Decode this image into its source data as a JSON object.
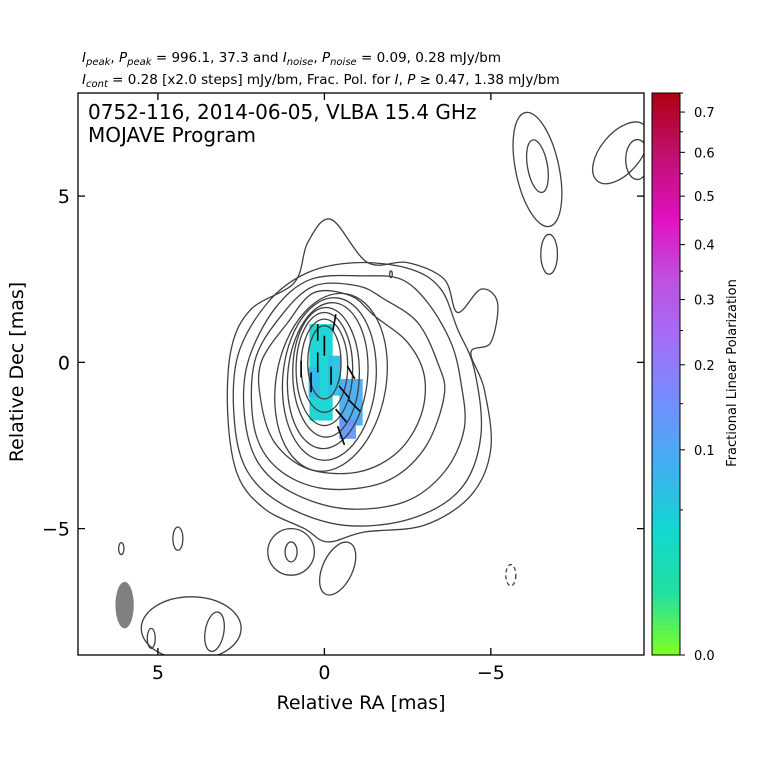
{
  "header": {
    "line1_parts": [
      "I",
      "peak",
      ", ",
      "P",
      "peak",
      " = 996.1, 37.3 and ",
      "I",
      "noise",
      ", ",
      "P",
      "noise",
      " = 0.09, 0.28 mJy/bm"
    ],
    "line2_parts": [
      "I",
      "cont",
      " = 0.28 [x2.0 steps] mJy/bm, Frac. Pol. for ",
      "I",
      ", ",
      "P",
      " ≥ 0.47, 1.38 mJy/bm"
    ]
  },
  "chart_data": {
    "type": "heatmap",
    "subtype": "radio-interferometry polarization map (contours + fractional polarization color + EVPA sticks)",
    "annotation_lines": [
      "0752-116, 2014-06-05, VLBA 15.4 GHz",
      "MOJAVE Program"
    ],
    "xlabel": "Relative RA [mas]",
    "ylabel": "Relative Dec [mas]",
    "xlim": [
      7.4,
      -9.6
    ],
    "ylim": [
      -8.8,
      8.1
    ],
    "x_reversed": true,
    "xticks": [
      5,
      0,
      -5
    ],
    "xtick_labels": [
      "5",
      "0",
      "−5"
    ],
    "yticks": [
      5,
      0,
      -5
    ],
    "ytick_labels": [
      "5",
      "0",
      "−5"
    ],
    "grid": false,
    "colorbar": {
      "label": "Fractional Linear Polarization",
      "range": [
        0.0,
        0.75
      ],
      "scale": "sqrt",
      "ticks": [
        0.0,
        0.1,
        0.2,
        0.3,
        0.4,
        0.5,
        0.6,
        0.7
      ],
      "tick_labels": [
        "0.0",
        "0.1",
        "0.2",
        "0.3",
        "0.4",
        "0.5",
        "0.6",
        "0.7"
      ],
      "minor_ticks": [
        0.05,
        0.15,
        0.25,
        0.35,
        0.45,
        0.55,
        0.65,
        0.75
      ],
      "colors": [
        "#80ff20",
        "#20e0a0",
        "#10d8d0",
        "#40b0f0",
        "#7090ff",
        "#a070f8",
        "#c050e0",
        "#e010c0",
        "#c01070",
        "#b00010"
      ]
    },
    "contours": {
      "base_mJy_per_bm": 0.28,
      "step_factor": 2.0,
      "core_levels": [
        {
          "cx": 0.0,
          "cy": 0.0,
          "rx": 0.5,
          "ry": 1.1,
          "rot": 0
        },
        {
          "cx": 0.0,
          "cy": -0.1,
          "rx": 0.7,
          "ry": 1.4,
          "rot": 0
        },
        {
          "cx": 0.0,
          "cy": -0.2,
          "rx": 0.85,
          "ry": 1.7,
          "rot": 0
        },
        {
          "cx": -0.05,
          "cy": -0.3,
          "rx": 1.0,
          "ry": 1.95,
          "rot": 0
        },
        {
          "cx": -0.1,
          "cy": -0.4,
          "rx": 1.2,
          "ry": 2.2,
          "rot": 5
        },
        {
          "cx": -0.15,
          "cy": -0.5,
          "rx": 1.4,
          "ry": 2.45,
          "rot": 5
        },
        {
          "cx": -0.2,
          "cy": -0.6,
          "rx": 1.65,
          "ry": 2.7,
          "rot": 10
        }
      ],
      "outer_levels": [
        [
          [
            1.1,
            1.2
          ],
          [
            0.3,
            2.1
          ],
          [
            -0.8,
            2.0
          ],
          [
            -1.5,
            1.4
          ],
          [
            -2.5,
            0.6
          ],
          [
            -3.0,
            -0.4
          ],
          [
            -2.9,
            -1.6
          ],
          [
            -2.2,
            -2.7
          ],
          [
            -1.0,
            -3.3
          ],
          [
            0.5,
            -3.2
          ],
          [
            1.5,
            -2.4
          ],
          [
            1.9,
            -1.2
          ],
          [
            1.9,
            0.0
          ]
        ],
        [
          [
            1.3,
            1.4
          ],
          [
            0.3,
            2.3
          ],
          [
            -1.0,
            2.3
          ],
          [
            -1.8,
            1.9
          ],
          [
            -2.8,
            1.2
          ],
          [
            -3.4,
            0.0
          ],
          [
            -3.6,
            -1.0
          ],
          [
            -3.0,
            -2.6
          ],
          [
            -1.8,
            -3.6
          ],
          [
            0.0,
            -3.8
          ],
          [
            1.4,
            -3.2
          ],
          [
            2.1,
            -2.0
          ],
          [
            2.1,
            0.0
          ]
        ],
        [
          [
            1.5,
            1.6
          ],
          [
            0.4,
            2.5
          ],
          [
            -1.2,
            2.6
          ],
          [
            -2.3,
            2.5
          ],
          [
            -3.1,
            1.8
          ],
          [
            -3.8,
            0.6
          ],
          [
            -4.1,
            -0.6
          ],
          [
            -4.2,
            -2.0
          ],
          [
            -3.6,
            -3.3
          ],
          [
            -2.4,
            -4.2
          ],
          [
            -0.6,
            -4.4
          ],
          [
            1.0,
            -3.9
          ],
          [
            2.0,
            -3.0
          ],
          [
            2.4,
            -1.6
          ],
          [
            2.3,
            0.0
          ]
        ],
        [
          [
            1.7,
            1.8
          ],
          [
            0.5,
            2.7
          ],
          [
            -1.0,
            3.0
          ],
          [
            -2.6,
            2.8
          ],
          [
            -3.5,
            2.2
          ],
          [
            -4.0,
            1.0
          ],
          [
            -4.5,
            -0.2
          ],
          [
            -4.7,
            -2.2
          ],
          [
            -4.1,
            -3.8
          ],
          [
            -2.6,
            -4.7
          ],
          [
            -0.6,
            -4.9
          ],
          [
            1.2,
            -4.3
          ],
          [
            2.3,
            -3.3
          ],
          [
            2.7,
            -1.8
          ],
          [
            2.6,
            0.2
          ]
        ],
        [
          [
            0.9,
            2.4
          ],
          [
            0.5,
            3.6
          ],
          [
            -0.2,
            4.3
          ],
          [
            -1.3,
            3.0
          ],
          [
            -2.5,
            3.0
          ],
          [
            -3.6,
            2.5
          ],
          [
            -4.0,
            1.5
          ],
          [
            -4.7,
            2.2
          ],
          [
            -5.2,
            1.8
          ],
          [
            -5.0,
            0.6
          ],
          [
            -4.4,
            0.3
          ],
          [
            -4.8,
            -0.8
          ],
          [
            -5.0,
            -2.6
          ],
          [
            -4.4,
            -4.0
          ],
          [
            -3.0,
            -4.9
          ],
          [
            -1.2,
            -5.1
          ],
          [
            -0.1,
            -5.4
          ],
          [
            0.6,
            -5.0
          ],
          [
            1.8,
            -4.4
          ],
          [
            2.6,
            -3.4
          ],
          [
            2.9,
            -1.6
          ],
          [
            2.8,
            0.4
          ],
          [
            2.2,
            1.6
          ]
        ]
      ],
      "islands": [
        {
          "type": "ellipse",
          "cx": -6.4,
          "cy": 5.9,
          "rx": 0.3,
          "ry": 0.8,
          "rot": -10
        },
        {
          "type": "ellipse",
          "cx": -6.4,
          "cy": 5.8,
          "rx": 0.65,
          "ry": 1.75,
          "rot": -12
        },
        {
          "type": "ellipse",
          "cx": -6.75,
          "cy": 3.25,
          "rx": 0.25,
          "ry": 0.6,
          "rot": 0
        },
        {
          "type": "ellipse",
          "cx": -8.9,
          "cy": 6.3,
          "rx": 0.6,
          "ry": 1.1,
          "rot": 40
        },
        {
          "type": "ellipse",
          "cx": -9.4,
          "cy": 6.1,
          "rx": 0.35,
          "ry": 0.6,
          "rot": 0
        },
        {
          "type": "ellipse",
          "cx": 1.0,
          "cy": -5.7,
          "rx": 0.7,
          "ry": 0.7,
          "rot": 0
        },
        {
          "type": "ellipse",
          "cx": 1.0,
          "cy": -5.7,
          "rx": 0.18,
          "ry": 0.3,
          "rot": 0
        },
        {
          "type": "ellipse",
          "cx": -0.4,
          "cy": -6.2,
          "rx": 0.45,
          "ry": 0.85,
          "rot": 25
        },
        {
          "type": "ellipse",
          "cx": 4.4,
          "cy": -5.3,
          "rx": 0.15,
          "ry": 0.35,
          "rot": 0
        },
        {
          "type": "ellipse",
          "cx": 6.1,
          "cy": -5.6,
          "rx": 0.08,
          "ry": 0.18,
          "rot": 0
        },
        {
          "type": "ellipse",
          "cx": 5.2,
          "cy": -8.3,
          "rx": 0.12,
          "ry": 0.3,
          "rot": 0
        },
        {
          "type": "ellipse",
          "cx": 3.3,
          "cy": -8.1,
          "rx": 0.28,
          "ry": 0.6,
          "rot": 10
        },
        {
          "type": "ellipse",
          "cx": 4.0,
          "cy": -8.0,
          "rx": 1.5,
          "ry": 0.95,
          "rot": 0
        },
        {
          "type": "ellipse",
          "cx": -5.6,
          "cy": -6.4,
          "rx": 0.15,
          "ry": 0.32,
          "rot": 0,
          "dashed": true
        },
        {
          "type": "ellipse",
          "cx": -2.0,
          "cy": 2.65,
          "rx": 0.04,
          "ry": 0.1,
          "rot": 0
        }
      ]
    },
    "frac_pol_patches": [
      {
        "x": 0.1,
        "y": -0.3,
        "w": 0.7,
        "h": 2.9,
        "value": 0.04
      },
      {
        "x": 0.3,
        "y": -0.6,
        "w": 0.35,
        "h": 0.9,
        "value": 0.07
      },
      {
        "x": -0.3,
        "y": -0.4,
        "w": 0.4,
        "h": 1.2,
        "value": 0.06
      },
      {
        "x": -0.8,
        "y": -1.2,
        "w": 0.7,
        "h": 1.4,
        "value": 0.09
      },
      {
        "x": -0.7,
        "y": -2.0,
        "w": 0.5,
        "h": 0.6,
        "value": 0.13
      }
    ],
    "evpa_sticks": [
      {
        "x": 0.2,
        "y": 0.9,
        "len": 0.5,
        "angle_deg": 0
      },
      {
        "x": 0.0,
        "y": 0.5,
        "len": 0.6,
        "angle_deg": 0
      },
      {
        "x": 0.2,
        "y": 0.0,
        "len": 0.6,
        "angle_deg": 0
      },
      {
        "x": -0.2,
        "y": -0.4,
        "len": 0.55,
        "angle_deg": 0
      },
      {
        "x": 0.4,
        "y": -0.6,
        "len": 0.6,
        "angle_deg": 0
      },
      {
        "x": -0.6,
        "y": -0.9,
        "len": 0.5,
        "angle_deg": 40
      },
      {
        "x": -0.9,
        "y": -1.3,
        "len": 0.5,
        "angle_deg": 45
      },
      {
        "x": -0.5,
        "y": -1.6,
        "len": 0.5,
        "angle_deg": 40
      },
      {
        "x": -0.3,
        "y": 1.2,
        "len": 0.5,
        "angle_deg": -10
      },
      {
        "x": -0.8,
        "y": -0.3,
        "len": 0.45,
        "angle_deg": 30
      },
      {
        "x": 0.7,
        "y": -0.2,
        "len": 0.5,
        "angle_deg": 0
      },
      {
        "x": -0.5,
        "y": -2.2,
        "len": 0.6,
        "angle_deg": 20
      }
    ],
    "beam": {
      "x": 6.0,
      "y": -7.3,
      "major": 1.4,
      "minor": 0.55,
      "pa_deg": 0,
      "color": "#808080"
    }
  }
}
